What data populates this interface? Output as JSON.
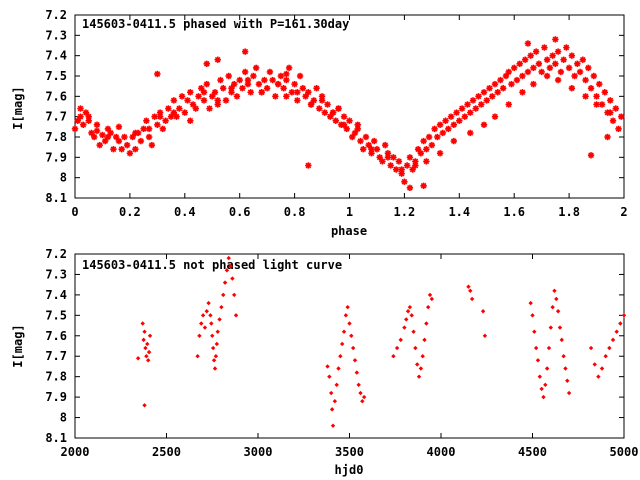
{
  "chart_data": [
    {
      "type": "scatter",
      "title": "145603-0411.5 phased with P=161.30day",
      "xlabel": "phase",
      "ylabel": "I[mag]",
      "xlim": [
        0,
        2
      ],
      "ylim": [
        7.2,
        8.1
      ],
      "y_inverted": true,
      "xticks": [
        "0",
        "0.2",
        "0.4",
        "0.6",
        "0.8",
        "1",
        "1.2",
        "1.4",
        "1.6",
        "1.8",
        "2"
      ],
      "yticks": [
        "7.2",
        "7.3",
        "7.4",
        "7.5",
        "7.6",
        "7.7",
        "7.8",
        "7.9",
        "8",
        "8.1"
      ],
      "grid": false,
      "color": "#ff0000",
      "marker": "asterisk",
      "series": [
        {
          "x": [
            0.0,
            0.01,
            0.02,
            0.03,
            0.04,
            0.05,
            0.06,
            0.07,
            0.08,
            0.09,
            0.1,
            0.11,
            0.12,
            0.13,
            0.14,
            0.15,
            0.16,
            0.17,
            0.18,
            0.19,
            0.2,
            0.21,
            0.22,
            0.23,
            0.24,
            0.25,
            0.26,
            0.27,
            0.28,
            0.29,
            0.3,
            0.31,
            0.32,
            0.33,
            0.34,
            0.35,
            0.36,
            0.37,
            0.38,
            0.39,
            0.4,
            0.41,
            0.42,
            0.43,
            0.44,
            0.45,
            0.46,
            0.47,
            0.48,
            0.49,
            0.5,
            0.51,
            0.52,
            0.53,
            0.54,
            0.55,
            0.56,
            0.57,
            0.58,
            0.59,
            0.6,
            0.61,
            0.62,
            0.63,
            0.64,
            0.65,
            0.66,
            0.67,
            0.68,
            0.69,
            0.7,
            0.71,
            0.72,
            0.73,
            0.74,
            0.75,
            0.76,
            0.77,
            0.78,
            0.79,
            0.8,
            0.81,
            0.82,
            0.83,
            0.84,
            0.85,
            0.86,
            0.87,
            0.88,
            0.89,
            0.9,
            0.91,
            0.92,
            0.93,
            0.94,
            0.95,
            0.96,
            0.97,
            0.98,
            0.99,
            1.0,
            1.01,
            1.02,
            1.03,
            1.04,
            1.05,
            1.06,
            1.07,
            1.08,
            1.09,
            1.1,
            1.11,
            1.12,
            1.13,
            1.14,
            1.15,
            1.16,
            1.17,
            1.18,
            1.19,
            1.2,
            1.21,
            1.22,
            1.23,
            1.24,
            1.25,
            1.26,
            1.27,
            1.28,
            1.29,
            1.3,
            1.31,
            1.32,
            1.33,
            1.34,
            1.35,
            1.36,
            1.37,
            1.38,
            1.39,
            1.4,
            1.41,
            1.42,
            1.43,
            1.44,
            1.45,
            1.46,
            1.47,
            1.48,
            1.49,
            1.5,
            1.51,
            1.52,
            1.53,
            1.54,
            1.55,
            1.56,
            1.57,
            1.58,
            1.59,
            1.6,
            1.61,
            1.62,
            1.63,
            1.64,
            1.65,
            1.66,
            1.67,
            1.68,
            1.69,
            1.7,
            1.71,
            1.72,
            1.73,
            1.74,
            1.75,
            1.76,
            1.77,
            1.78,
            1.79,
            1.8,
            1.81,
            1.82,
            1.83,
            1.84,
            1.85,
            1.86,
            1.87,
            1.88,
            1.89,
            1.9,
            1.91,
            1.92,
            1.93,
            1.94,
            1.95,
            1.96,
            1.97,
            1.98,
            1.99,
            0.02,
            0.05,
            0.08,
            0.12,
            0.16,
            0.22,
            0.27,
            0.31,
            0.36,
            0.42,
            0.47,
            0.52,
            0.57,
            0.63,
            0.68,
            0.74,
            0.77,
            0.81,
            0.86,
            0.9,
            0.94,
            0.98,
            1.03,
            1.08,
            1.14,
            1.19,
            1.24,
            1.28,
            1.33,
            1.38,
            1.44,
            1.49,
            1.53,
            1.58,
            1.63,
            1.67,
            1.72,
            1.76,
            1.81,
            1.86,
            1.9,
            1.95,
            0.3,
            0.48,
            0.52,
            0.62,
            0.77,
            0.85,
            0.96,
            1.22,
            1.27,
            1.65,
            1.75,
            1.88,
            1.94
          ],
          "y": [
            7.76,
            7.72,
            7.7,
            7.74,
            7.68,
            7.72,
            7.78,
            7.8,
            7.77,
            7.84,
            7.79,
            7.82,
            7.76,
            7.78,
            7.86,
            7.8,
            7.75,
            7.86,
            7.8,
            7.84,
            7.88,
            7.8,
            7.86,
            7.78,
            7.82,
            7.76,
            7.72,
            7.8,
            7.84,
            7.7,
            7.74,
            7.68,
            7.76,
            7.72,
            7.66,
            7.7,
            7.62,
            7.7,
            7.66,
            7.6,
            7.68,
            7.62,
            7.58,
            7.64,
            7.66,
            7.6,
            7.56,
            7.62,
            7.54,
            7.66,
            7.6,
            7.58,
            7.64,
            7.52,
            7.56,
            7.62,
            7.5,
            7.58,
            7.54,
            7.6,
            7.52,
            7.56,
            7.48,
            7.54,
            7.58,
            7.5,
            7.46,
            7.54,
            7.58,
            7.52,
            7.56,
            7.48,
            7.52,
            7.6,
            7.54,
            7.5,
            7.56,
            7.52,
            7.46,
            7.58,
            7.54,
            7.62,
            7.5,
            7.56,
            7.6,
            7.58,
            7.64,
            7.62,
            7.56,
            7.66,
            7.62,
            7.68,
            7.64,
            7.7,
            7.68,
            7.72,
            7.66,
            7.74,
            7.7,
            7.76,
            7.72,
            7.8,
            7.78,
            7.74,
            7.82,
            7.86,
            7.8,
            7.84,
            7.88,
            7.82,
            7.86,
            7.9,
            7.92,
            7.84,
            7.88,
            7.94,
            7.9,
            7.96,
            7.92,
            7.98,
            8.02,
            7.94,
            7.9,
            7.96,
            7.92,
            7.86,
            7.88,
            7.82,
            7.86,
            7.8,
            7.84,
            7.76,
            7.8,
            7.74,
            7.78,
            7.72,
            7.76,
            7.7,
            7.74,
            7.68,
            7.72,
            7.66,
            7.7,
            7.64,
            7.68,
            7.62,
            7.66,
            7.6,
            7.64,
            7.58,
            7.62,
            7.56,
            7.6,
            7.54,
            7.58,
            7.52,
            7.56,
            7.5,
            7.48,
            7.54,
            7.46,
            7.52,
            7.44,
            7.5,
            7.42,
            7.48,
            7.4,
            7.46,
            7.38,
            7.44,
            7.48,
            7.36,
            7.42,
            7.46,
            7.4,
            7.44,
            7.38,
            7.48,
            7.42,
            7.36,
            7.46,
            7.4,
            7.5,
            7.44,
            7.48,
            7.42,
            7.52,
            7.46,
            7.56,
            7.5,
            7.6,
            7.54,
            7.64,
            7.58,
            7.68,
            7.62,
            7.72,
            7.66,
            7.76,
            7.7,
            7.66,
            7.7,
            7.74,
            7.8,
            7.82,
            7.78,
            7.76,
            7.7,
            7.68,
            7.72,
            7.58,
            7.62,
            7.56,
            7.52,
            7.58,
            7.54,
            7.6,
            7.58,
            7.64,
            7.6,
            7.68,
            7.74,
            7.76,
            7.86,
            7.9,
            7.96,
            7.94,
            7.92,
            7.88,
            7.82,
            7.78,
            7.74,
            7.7,
            7.64,
            7.58,
            7.54,
            7.5,
            7.52,
            7.56,
            7.6,
            7.64,
            7.68,
            7.49,
            7.44,
            7.42,
            7.38,
            7.49,
            7.94,
            7.66,
            8.05,
            8.04,
            7.34,
            7.32,
            7.89,
            7.8
          ]
        }
      ]
    },
    {
      "type": "scatter",
      "title": "145603-0411.5 not phased light curve",
      "xlabel": "hjd0",
      "ylabel": "I[mag]",
      "xlim": [
        2000,
        5000
      ],
      "ylim": [
        7.2,
        8.1
      ],
      "y_inverted": true,
      "xticks": [
        "2000",
        "2500",
        "3000",
        "3500",
        "4000",
        "4500",
        "5000"
      ],
      "yticks": [
        "7.2",
        "7.3",
        "7.4",
        "7.5",
        "7.6",
        "7.7",
        "7.8",
        "7.9",
        "8",
        "8.1"
      ],
      "grid": false,
      "color": "#ff0000",
      "marker": "diamond",
      "series": [
        {
          "x": [
            2345,
            2370,
            2375,
            2380,
            2385,
            2390,
            2395,
            2400,
            2405,
            2410,
            2380,
            2670,
            2680,
            2690,
            2700,
            2710,
            2720,
            2730,
            2740,
            2745,
            2750,
            2755,
            2760,
            2765,
            2770,
            2775,
            2780,
            2790,
            2800,
            2810,
            2820,
            2830,
            2840,
            2850,
            2860,
            2870,
            2880,
            3380,
            3390,
            3400,
            3405,
            3410,
            3420,
            3430,
            3440,
            3450,
            3460,
            3470,
            3480,
            3490,
            3500,
            3510,
            3520,
            3530,
            3540,
            3550,
            3560,
            3570,
            3580,
            3740,
            3760,
            3780,
            3800,
            3810,
            3820,
            3830,
            3840,
            3850,
            3860,
            3870,
            3880,
            3890,
            3900,
            3910,
            3920,
            3930,
            3940,
            3950,
            4150,
            4160,
            4170,
            4230,
            4240,
            4490,
            4500,
            4510,
            4520,
            4530,
            4540,
            4550,
            4560,
            4570,
            4580,
            4590,
            4600,
            4610,
            4620,
            4630,
            4640,
            4650,
            4660,
            4670,
            4680,
            4690,
            4700,
            4820,
            4840,
            4860,
            4880,
            4900,
            4920,
            4940,
            4960,
            4980,
            5000
          ],
          "y": [
            7.71,
            7.54,
            7.62,
            7.58,
            7.66,
            7.7,
            7.64,
            7.72,
            7.68,
            7.6,
            7.94,
            7.7,
            7.6,
            7.54,
            7.5,
            7.56,
            7.48,
            7.44,
            7.5,
            7.54,
            7.6,
            7.66,
            7.72,
            7.76,
            7.7,
            7.64,
            7.58,
            7.52,
            7.46,
            7.4,
            7.34,
            7.28,
            7.22,
            7.26,
            7.32,
            7.4,
            7.5,
            7.75,
            7.8,
            7.88,
            7.96,
            8.04,
            7.92,
            7.84,
            7.76,
            7.7,
            7.64,
            7.58,
            7.5,
            7.46,
            7.54,
            7.6,
            7.66,
            7.72,
            7.78,
            7.84,
            7.88,
            7.92,
            7.9,
            7.7,
            7.66,
            7.62,
            7.56,
            7.52,
            7.48,
            7.46,
            7.5,
            7.58,
            7.66,
            7.74,
            7.8,
            7.76,
            7.7,
            7.62,
            7.54,
            7.46,
            7.4,
            7.42,
            7.36,
            7.38,
            7.42,
            7.48,
            7.6,
            7.44,
            7.5,
            7.58,
            7.66,
            7.72,
            7.8,
            7.86,
            7.9,
            7.84,
            7.76,
            7.66,
            7.56,
            7.46,
            7.38,
            7.42,
            7.48,
            7.56,
            7.62,
            7.7,
            7.76,
            7.82,
            7.88,
            7.66,
            7.74,
            7.8,
            7.76,
            7.7,
            7.66,
            7.62,
            7.58,
            7.54,
            7.5
          ]
        }
      ]
    }
  ]
}
